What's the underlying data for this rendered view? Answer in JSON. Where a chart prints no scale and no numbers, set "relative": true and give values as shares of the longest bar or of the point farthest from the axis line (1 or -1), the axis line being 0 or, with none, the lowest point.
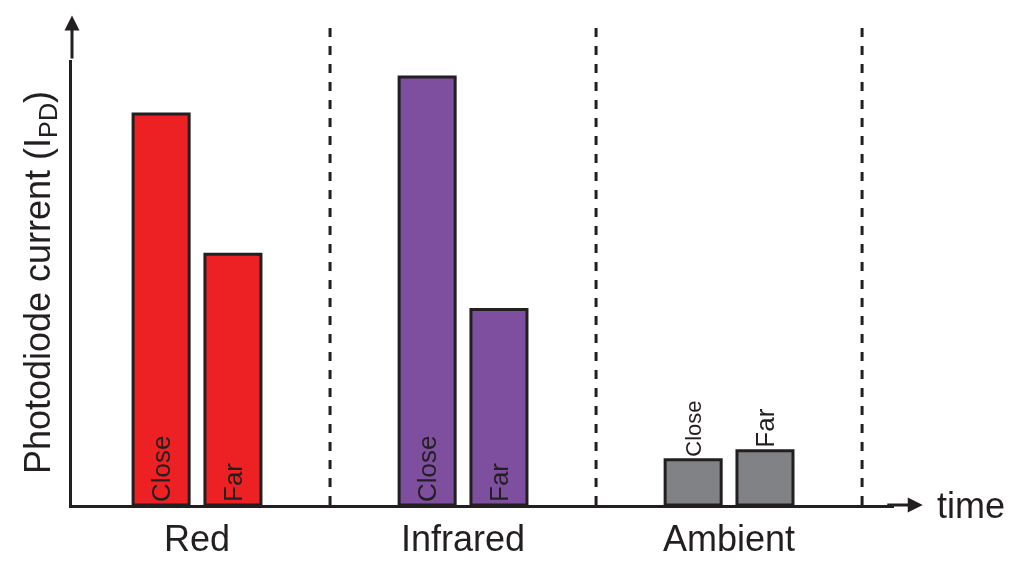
{
  "chart_data": {
    "type": "bar",
    "relative": true,
    "ylabel": "Photodiode current (I$_{PD}$)",
    "xlabel": "time",
    "categories": [
      "Red",
      "Infrared",
      "Ambient"
    ],
    "series": [
      {
        "name": "Close",
        "colors": [
          "#ed2024",
          "#7f4f9f",
          "#808285"
        ],
        "values": [
          0.914,
          1,
          0.106
        ]
      },
      {
        "name": "Far",
        "colors": [
          "#ed2024",
          "#7f4f9f",
          "#808285"
        ],
        "values": [
          0.586,
          0.457,
          0.127
        ]
      }
    ],
    "legend": false,
    "grid": false
  }
}
